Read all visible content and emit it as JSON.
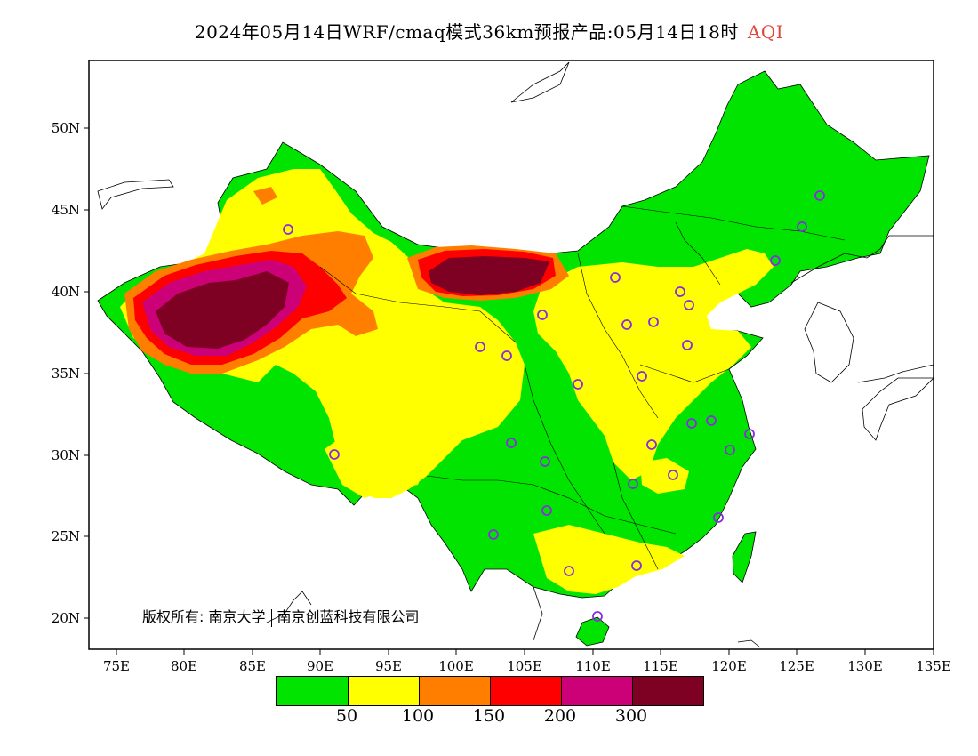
{
  "title": {
    "main": "2024年05月14日WRF/cmaq模式36km预报产品:05月14日18时",
    "variable": "AQI",
    "variable_color": "#e0463c"
  },
  "axes": {
    "lat_labels": [
      "50N",
      "45N",
      "40N",
      "35N",
      "30N",
      "25N",
      "20N"
    ],
    "lon_labels": [
      "75E",
      "80E",
      "85E",
      "90E",
      "95E",
      "100E",
      "105E",
      "110E",
      "115E",
      "120E",
      "125E",
      "130E",
      "135E"
    ]
  },
  "copyright": {
    "prefix": "版权所有:",
    "org1": "南京大学",
    "org2": "南京创蓝科技有限公司"
  },
  "legend": {
    "colors": [
      "#00e400",
      "#ffff00",
      "#ff7e00",
      "#ff0000",
      "#cc0077",
      "#7e0023"
    ],
    "thresholds": [
      "50",
      "100",
      "150",
      "200",
      "300"
    ]
  },
  "colors": {
    "good": "#00e400",
    "moderate": "#ffff00",
    "usg": "#ff7e00",
    "unhealthy": "#ff0000",
    "very_unhealthy": "#cc0077",
    "hazardous": "#7e0023",
    "station_marker": "#8a2be2"
  }
}
